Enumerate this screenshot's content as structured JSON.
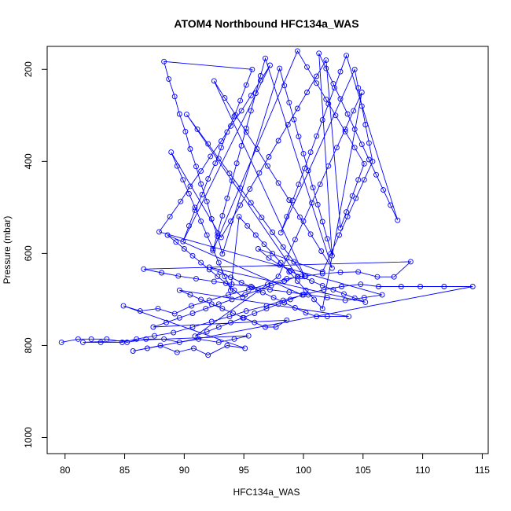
{
  "chart_data": {
    "type": "scatter",
    "title": "ATOM4 Northbound HFC134a_WAS",
    "xlabel": "HFC134a_WAS",
    "ylabel": "Pressure (mbar)",
    "xlim": [
      78.5,
      115.5
    ],
    "ylim": [
      1035,
      150
    ],
    "y_reversed": true,
    "grid": false,
    "legend": "none",
    "x_ticks": [
      80,
      85,
      90,
      95,
      100,
      105,
      110,
      115
    ],
    "y_ticks": [
      200,
      400,
      600,
      800,
      1000
    ],
    "series": [
      {
        "color": "#0000ff",
        "style": "points-and-lines",
        "points": [
          [
            79.7,
            793
          ],
          [
            81.1,
            786
          ],
          [
            82.2,
            786
          ],
          [
            83.5,
            786
          ],
          [
            85.2,
            793
          ],
          [
            86.8,
            786
          ],
          [
            88.3,
            786
          ],
          [
            89.6,
            793
          ],
          [
            91.2,
            786
          ],
          [
            92.9,
            793
          ],
          [
            94.2,
            786
          ],
          [
            95.4,
            779
          ],
          [
            81.5,
            793
          ],
          [
            83.0,
            793
          ],
          [
            84.8,
            793
          ],
          [
            86.0,
            786
          ],
          [
            87.5,
            779
          ],
          [
            89.1,
            772
          ],
          [
            90.7,
            760
          ],
          [
            92.3,
            748
          ],
          [
            93.8,
            737
          ],
          [
            95.2,
            725
          ],
          [
            96.9,
            714
          ],
          [
            98.3,
            702
          ],
          [
            100.0,
            690
          ],
          [
            101.7,
            679
          ],
          [
            103.2,
            672
          ],
          [
            104.8,
            667
          ],
          [
            106.3,
            672
          ],
          [
            108.2,
            672
          ],
          [
            109.8,
            672
          ],
          [
            111.8,
            672
          ],
          [
            114.2,
            672
          ],
          [
            85.7,
            812
          ],
          [
            86.9,
            806
          ],
          [
            88.0,
            800
          ],
          [
            89.4,
            815
          ],
          [
            90.8,
            806
          ],
          [
            92.0,
            821
          ],
          [
            93.6,
            800
          ],
          [
            95.1,
            806
          ],
          [
            84.9,
            714
          ],
          [
            86.3,
            725
          ],
          [
            87.8,
            720
          ],
          [
            89.2,
            731
          ],
          [
            90.6,
            714
          ],
          [
            92.1,
            702
          ],
          [
            93.7,
            690
          ],
          [
            95.4,
            679
          ],
          [
            97.0,
            667
          ],
          [
            98.6,
            655
          ],
          [
            100.2,
            649
          ],
          [
            101.6,
            644
          ],
          [
            103.1,
            641
          ],
          [
            104.6,
            640
          ],
          [
            106.2,
            651
          ],
          [
            107.6,
            651
          ],
          [
            109.0,
            618
          ],
          [
            86.6,
            634
          ],
          [
            88.1,
            642
          ],
          [
            89.5,
            649
          ],
          [
            91.0,
            655
          ],
          [
            92.5,
            661
          ],
          [
            94.0,
            667
          ],
          [
            95.6,
            672
          ],
          [
            97.2,
            679
          ],
          [
            98.8,
            684
          ],
          [
            100.4,
            690
          ],
          [
            102.0,
            696
          ],
          [
            103.5,
            702
          ],
          [
            105.1,
            696
          ],
          [
            106.6,
            690
          ],
          [
            87.9,
            553
          ],
          [
            88.8,
            520
          ],
          [
            89.7,
            487
          ],
          [
            90.5,
            454
          ],
          [
            91.4,
            421
          ],
          [
            92.2,
            389
          ],
          [
            93.1,
            356
          ],
          [
            93.9,
            323
          ],
          [
            94.8,
            290
          ],
          [
            95.6,
            257
          ],
          [
            96.4,
            224
          ],
          [
            97.2,
            191
          ],
          [
            89.9,
            574
          ],
          [
            90.4,
            540
          ],
          [
            90.9,
            506
          ],
          [
            91.5,
            472
          ],
          [
            92.0,
            438
          ],
          [
            92.6,
            404
          ],
          [
            93.1,
            370
          ],
          [
            93.6,
            336
          ],
          [
            94.2,
            302
          ],
          [
            94.7,
            268
          ],
          [
            95.2,
            234
          ],
          [
            95.7,
            200
          ],
          [
            88.3,
            183
          ],
          [
            88.7,
            221
          ],
          [
            89.2,
            259
          ],
          [
            89.6,
            297
          ],
          [
            90.1,
            335
          ],
          [
            90.5,
            373
          ],
          [
            91.0,
            411
          ],
          [
            91.4,
            449
          ],
          [
            91.9,
            487
          ],
          [
            92.3,
            525
          ],
          [
            92.8,
            563
          ],
          [
            93.2,
            601
          ],
          [
            98.0,
            198
          ],
          [
            98.4,
            235
          ],
          [
            98.8,
            272
          ],
          [
            99.2,
            309
          ],
          [
            99.6,
            346
          ],
          [
            100.0,
            383
          ],
          [
            100.4,
            420
          ],
          [
            100.8,
            457
          ],
          [
            101.2,
            494
          ],
          [
            101.6,
            531
          ],
          [
            102.0,
            568
          ],
          [
            102.4,
            605
          ],
          [
            101.3,
            165
          ],
          [
            101.9,
            198
          ],
          [
            102.5,
            231
          ],
          [
            103.1,
            264
          ],
          [
            103.7,
            297
          ],
          [
            104.3,
            330
          ],
          [
            104.9,
            363
          ],
          [
            105.5,
            396
          ],
          [
            106.1,
            429
          ],
          [
            106.7,
            462
          ],
          [
            107.3,
            495
          ],
          [
            107.9,
            528
          ],
          [
            103.6,
            170
          ],
          [
            103.1,
            205
          ],
          [
            102.6,
            240
          ],
          [
            102.1,
            275
          ],
          [
            101.6,
            310
          ],
          [
            101.1,
            345
          ],
          [
            100.6,
            380
          ],
          [
            100.1,
            415
          ],
          [
            99.6,
            450
          ],
          [
            99.1,
            485
          ],
          [
            98.6,
            520
          ],
          [
            98.1,
            555
          ],
          [
            104.3,
            200
          ],
          [
            104.6,
            240
          ],
          [
            104.9,
            280
          ],
          [
            105.2,
            320
          ],
          [
            105.5,
            360
          ],
          [
            105.8,
            400
          ],
          [
            105.1,
            440
          ],
          [
            104.4,
            480
          ],
          [
            103.7,
            520
          ],
          [
            103.0,
            560
          ],
          [
            102.3,
            600
          ],
          [
            101.6,
            640
          ],
          [
            96.2,
            590
          ],
          [
            97.1,
            610
          ],
          [
            98.0,
            625
          ],
          [
            98.9,
            638
          ],
          [
            99.8,
            650
          ],
          [
            100.7,
            660
          ],
          [
            101.6,
            670
          ],
          [
            102.5,
            679
          ],
          [
            103.4,
            688
          ],
          [
            104.3,
            697
          ],
          [
            105.2,
            706
          ],
          [
            92.1,
            630
          ],
          [
            93.0,
            641
          ],
          [
            93.9,
            652
          ],
          [
            94.8,
            663
          ],
          [
            95.7,
            674
          ],
          [
            96.6,
            685
          ],
          [
            97.5,
            696
          ],
          [
            98.4,
            707
          ],
          [
            99.3,
            718
          ],
          [
            100.2,
            729
          ],
          [
            101.1,
            737
          ],
          [
            102.0,
            737
          ],
          [
            103.8,
            737
          ],
          [
            89.6,
            680
          ],
          [
            90.5,
            690
          ],
          [
            91.4,
            700
          ],
          [
            92.3,
            710
          ],
          [
            93.2,
            720
          ],
          [
            94.1,
            730
          ],
          [
            95.0,
            740
          ],
          [
            95.9,
            750
          ],
          [
            96.8,
            760
          ],
          [
            97.7,
            760
          ],
          [
            98.6,
            745
          ],
          [
            87.4,
            760
          ],
          [
            88.5,
            750
          ],
          [
            89.6,
            740
          ],
          [
            90.7,
            730
          ],
          [
            91.8,
            720
          ],
          [
            92.9,
            710
          ],
          [
            94.0,
            700
          ],
          [
            95.1,
            690
          ],
          [
            96.2,
            680
          ],
          [
            97.3,
            670
          ],
          [
            98.4,
            660
          ],
          [
            99.5,
            650
          ],
          [
            90.2,
            298
          ],
          [
            91.1,
            330
          ],
          [
            92.0,
            362
          ],
          [
            92.9,
            394
          ],
          [
            93.8,
            426
          ],
          [
            94.7,
            458
          ],
          [
            95.6,
            490
          ],
          [
            96.5,
            522
          ],
          [
            97.4,
            554
          ],
          [
            98.3,
            586
          ],
          [
            99.2,
            618
          ],
          [
            100.1,
            650
          ],
          [
            92.5,
            225
          ],
          [
            93.4,
            262
          ],
          [
            94.3,
            299
          ],
          [
            95.2,
            336
          ],
          [
            96.1,
            373
          ],
          [
            97.0,
            410
          ],
          [
            97.9,
            447
          ],
          [
            98.8,
            484
          ],
          [
            99.7,
            521
          ],
          [
            100.6,
            558
          ],
          [
            101.5,
            595
          ],
          [
            102.4,
            632
          ],
          [
            96.8,
            176
          ],
          [
            96.4,
            214
          ],
          [
            96.0,
            252
          ],
          [
            95.6,
            290
          ],
          [
            95.2,
            328
          ],
          [
            94.8,
            366
          ],
          [
            94.4,
            404
          ],
          [
            94.0,
            442
          ],
          [
            93.6,
            480
          ],
          [
            93.2,
            518
          ],
          [
            92.8,
            556
          ],
          [
            92.4,
            594
          ],
          [
            99.5,
            160
          ],
          [
            100.3,
            195
          ],
          [
            101.1,
            230
          ],
          [
            101.9,
            265
          ],
          [
            102.7,
            300
          ],
          [
            103.5,
            335
          ],
          [
            104.3,
            370
          ],
          [
            105.1,
            405
          ],
          [
            104.6,
            440
          ],
          [
            104.1,
            475
          ],
          [
            103.6,
            510
          ],
          [
            103.1,
            545
          ],
          [
            101.9,
            180
          ],
          [
            101.1,
            215
          ],
          [
            100.3,
            250
          ],
          [
            99.5,
            285
          ],
          [
            98.7,
            320
          ],
          [
            97.9,
            355
          ],
          [
            97.1,
            390
          ],
          [
            96.3,
            425
          ],
          [
            95.5,
            460
          ],
          [
            94.7,
            495
          ],
          [
            93.9,
            530
          ],
          [
            93.1,
            565
          ],
          [
            88.9,
            380
          ],
          [
            89.4,
            410
          ],
          [
            89.9,
            440
          ],
          [
            90.4,
            470
          ],
          [
            90.9,
            500
          ],
          [
            91.4,
            530
          ],
          [
            91.9,
            560
          ],
          [
            92.4,
            590
          ],
          [
            92.9,
            620
          ],
          [
            93.4,
            650
          ],
          [
            93.9,
            680
          ],
          [
            94.6,
            520
          ],
          [
            95.3,
            540
          ],
          [
            96.0,
            560
          ],
          [
            96.7,
            580
          ],
          [
            97.4,
            600
          ],
          [
            98.1,
            620
          ],
          [
            98.8,
            640
          ],
          [
            99.5,
            660
          ],
          [
            100.2,
            680
          ],
          [
            100.9,
            700
          ],
          [
            101.6,
            720
          ],
          [
            104.9,
            250
          ],
          [
            104.2,
            290
          ],
          [
            103.5,
            330
          ],
          [
            102.8,
            370
          ],
          [
            102.1,
            410
          ],
          [
            101.4,
            450
          ],
          [
            100.7,
            490
          ],
          [
            100.0,
            530
          ],
          [
            99.3,
            570
          ],
          [
            98.6,
            610
          ],
          [
            97.9,
            650
          ],
          [
            90.9,
            780
          ],
          [
            91.9,
            770
          ],
          [
            92.9,
            760
          ],
          [
            93.9,
            750
          ],
          [
            94.9,
            740
          ],
          [
            95.9,
            730
          ],
          [
            96.9,
            720
          ],
          [
            97.9,
            710
          ],
          [
            98.9,
            700
          ],
          [
            99.9,
            690
          ],
          [
            88.6,
            560
          ],
          [
            89.3,
            575
          ],
          [
            90.0,
            590
          ],
          [
            90.7,
            605
          ],
          [
            91.4,
            620
          ],
          [
            92.1,
            635
          ],
          [
            92.8,
            650
          ],
          [
            93.5,
            665
          ],
          [
            94.2,
            680
          ],
          [
            94.9,
            695
          ]
        ]
      }
    ]
  }
}
